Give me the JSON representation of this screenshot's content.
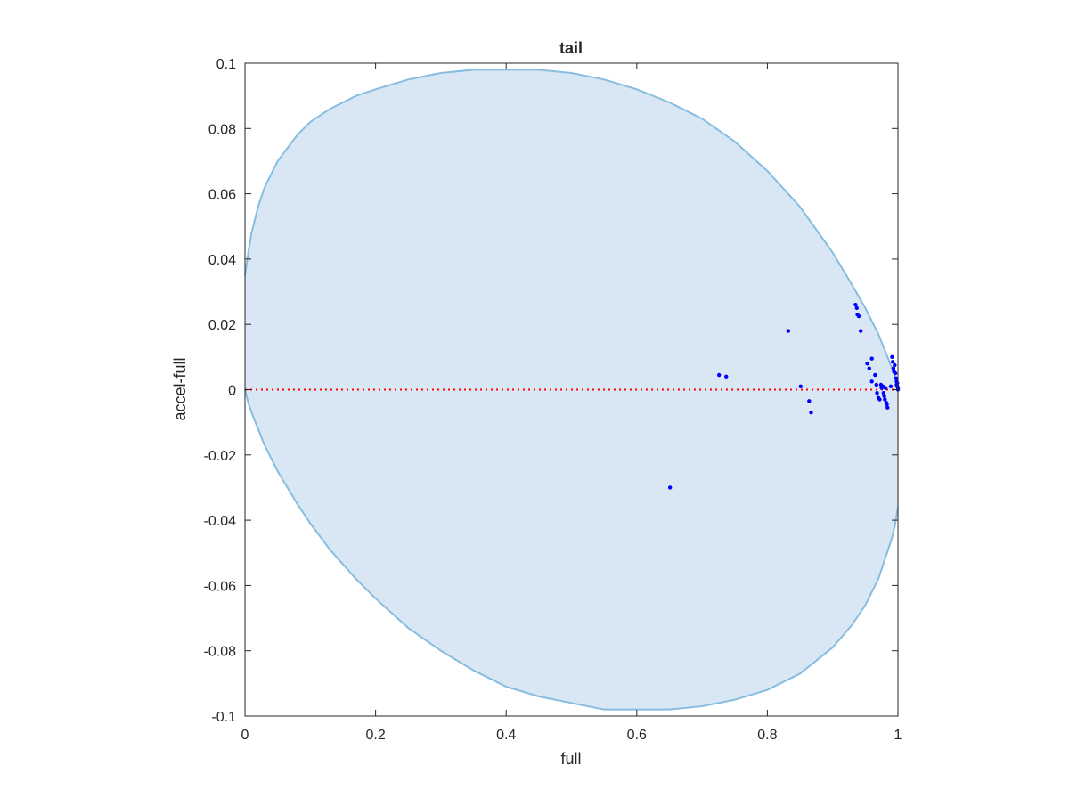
{
  "chart_data": {
    "type": "scatter",
    "title": "tail",
    "xlabel": "full",
    "ylabel": "accel-full",
    "xlim": [
      0,
      1
    ],
    "ylim": [
      -0.1,
      0.1
    ],
    "grid": false,
    "x_ticks": [
      0,
      0.2,
      0.4,
      0.6,
      0.8,
      1
    ],
    "x_tick_labels": [
      "0",
      "0.2",
      "0.4",
      "0.6",
      "0.8",
      "1"
    ],
    "y_ticks": [
      0.1,
      0.08,
      0.06,
      0.04,
      0.02,
      0,
      -0.02,
      -0.04,
      -0.06,
      -0.08,
      -0.1
    ],
    "y_tick_labels": [
      "0.1",
      "0.08",
      "0.06",
      "0.04",
      "0.02",
      "0",
      "-0.02",
      "-0.04",
      "-0.06",
      "-0.08",
      "-0.1"
    ],
    "region": {
      "type": "filled-boundary",
      "fill_color": "#d8e7f3",
      "edge_color": "#86bde0",
      "upper": {
        "x": [
          0,
          0.005,
          0.01,
          0.02,
          0.03,
          0.05,
          0.08,
          0.1,
          0.13,
          0.17,
          0.2,
          0.25,
          0.3,
          0.35,
          0.4,
          0.45,
          0.5,
          0.55,
          0.6,
          0.65,
          0.7,
          0.75,
          0.8,
          0.85,
          0.9,
          0.93,
          0.95,
          0.97,
          0.98,
          0.99,
          0.995,
          1
        ],
        "y": [
          0.035,
          0.042,
          0.048,
          0.056,
          0.062,
          0.07,
          0.078,
          0.082,
          0.086,
          0.09,
          0.092,
          0.095,
          0.097,
          0.098,
          0.098,
          0.098,
          0.097,
          0.095,
          0.092,
          0.088,
          0.083,
          0.076,
          0.067,
          0.056,
          0.042,
          0.032,
          0.025,
          0.017,
          0.012,
          0.007,
          0.004,
          0
        ]
      },
      "lower": {
        "x": [
          0,
          0.005,
          0.01,
          0.02,
          0.03,
          0.05,
          0.08,
          0.1,
          0.13,
          0.17,
          0.2,
          0.25,
          0.3,
          0.35,
          0.4,
          0.45,
          0.5,
          0.55,
          0.6,
          0.65,
          0.7,
          0.75,
          0.8,
          0.85,
          0.9,
          0.93,
          0.95,
          0.97,
          0.98,
          0.99,
          0.995,
          1
        ],
        "y": [
          0,
          -0.004,
          -0.007,
          -0.012,
          -0.017,
          -0.025,
          -0.035,
          -0.041,
          -0.049,
          -0.058,
          -0.064,
          -0.073,
          -0.08,
          -0.086,
          -0.091,
          -0.094,
          -0.096,
          -0.098,
          -0.098,
          -0.098,
          -0.097,
          -0.095,
          -0.092,
          -0.087,
          -0.079,
          -0.072,
          -0.066,
          -0.058,
          -0.052,
          -0.046,
          -0.042,
          -0.036
        ]
      }
    },
    "reference_line": {
      "y": 0,
      "color": "#ff0000",
      "style": "dotted"
    },
    "series": [
      {
        "color": "#0000ff",
        "marker": "dot",
        "points": [
          [
            0.651,
            -0.03
          ],
          [
            0.726,
            0.0045
          ],
          [
            0.737,
            0.004
          ],
          [
            0.832,
            0.018
          ],
          [
            0.851,
            0.001
          ],
          [
            0.864,
            -0.0035
          ],
          [
            0.867,
            -0.007
          ],
          [
            0.935,
            0.026
          ],
          [
            0.937,
            0.025
          ],
          [
            0.938,
            0.023
          ],
          [
            0.94,
            0.0225
          ],
          [
            0.943,
            0.018
          ],
          [
            0.953,
            0.008
          ],
          [
            0.956,
            0.0065
          ],
          [
            0.96,
            0.0095
          ],
          [
            0.96,
            0.0025
          ],
          [
            0.965,
            0.0045
          ],
          [
            0.967,
            0.0015
          ],
          [
            0.968,
            -0.001
          ],
          [
            0.97,
            -0.0025
          ],
          [
            0.972,
            -0.003
          ],
          [
            0.974,
            0.0015
          ],
          [
            0.975,
            0.0005
          ],
          [
            0.977,
            0.001
          ],
          [
            0.978,
            -0.001
          ],
          [
            0.979,
            -0.002
          ],
          [
            0.98,
            -0.003
          ],
          [
            0.981,
            0.0005
          ],
          [
            0.982,
            -0.004
          ],
          [
            0.983,
            -0.0045
          ],
          [
            0.984,
            -0.0055
          ],
          [
            0.989,
            0.001
          ],
          [
            0.991,
            0.01
          ],
          [
            0.992,
            0.0085
          ],
          [
            0.993,
            0.0065
          ],
          [
            0.994,
            0.0055
          ],
          [
            0.995,
            0.0075
          ],
          [
            0.996,
            0.005
          ],
          [
            0.997,
            0.0035
          ],
          [
            0.998,
            0.0025
          ],
          [
            0.998,
            0.0015
          ],
          [
            0.999,
            0.002
          ],
          [
            0.999,
            0.001
          ],
          [
            1.0,
            0.0005
          ],
          [
            1.0,
            0.0
          ]
        ]
      }
    ]
  }
}
